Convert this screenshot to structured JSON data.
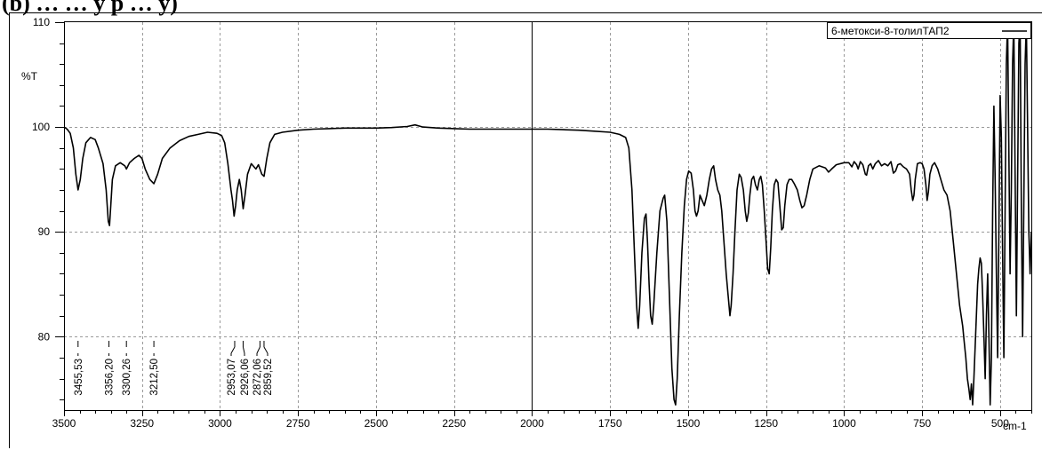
{
  "header_text": "(b) … … y p … y)",
  "chart_data": {
    "type": "line",
    "xlabel": "cm-1",
    "ylabel": "%T",
    "xlim": [
      3500,
      400
    ],
    "ylim": [
      73,
      110
    ],
    "x_ticks": [
      3500,
      3250,
      3000,
      2750,
      2500,
      2250,
      2000,
      1750,
      1500,
      1250,
      1000,
      750,
      500
    ],
    "x_tick_labels": [
      "3500",
      "3250",
      "3000",
      "2750",
      "2500",
      "2250",
      "2000",
      "1750",
      "1500",
      "1250",
      "1000",
      "750",
      "500"
    ],
    "y_ticks": [
      110,
      100,
      90,
      80
    ],
    "y_tick_labels": [
      "110",
      "100",
      "90",
      "80"
    ],
    "grid": true,
    "legend_position": "top-right",
    "series": [
      {
        "name": "6-метокси-8-толилТАП2",
        "color": "#000000",
        "points": [
          [
            3500,
            100.0
          ],
          [
            3490,
            99.8
          ],
          [
            3480,
            99.4
          ],
          [
            3470,
            98.0
          ],
          [
            3462,
            95.5
          ],
          [
            3455,
            94.0
          ],
          [
            3448,
            95.0
          ],
          [
            3440,
            97.0
          ],
          [
            3430,
            98.5
          ],
          [
            3415,
            99.0
          ],
          [
            3400,
            98.8
          ],
          [
            3390,
            98.0
          ],
          [
            3375,
            96.5
          ],
          [
            3365,
            94.0
          ],
          [
            3358,
            91.0
          ],
          [
            3354,
            90.6
          ],
          [
            3350,
            92.5
          ],
          [
            3345,
            95.0
          ],
          [
            3335,
            96.3
          ],
          [
            3320,
            96.6
          ],
          [
            3305,
            96.3
          ],
          [
            3300,
            96.0
          ],
          [
            3290,
            96.6
          ],
          [
            3275,
            97.0
          ],
          [
            3260,
            97.3
          ],
          [
            3250,
            97.0
          ],
          [
            3240,
            96.0
          ],
          [
            3225,
            95.0
          ],
          [
            3212,
            94.6
          ],
          [
            3200,
            95.5
          ],
          [
            3185,
            97.0
          ],
          [
            3160,
            98.0
          ],
          [
            3130,
            98.7
          ],
          [
            3100,
            99.1
          ],
          [
            3070,
            99.3
          ],
          [
            3040,
            99.5
          ],
          [
            3010,
            99.4
          ],
          [
            2995,
            99.2
          ],
          [
            2985,
            98.5
          ],
          [
            2975,
            96.5
          ],
          [
            2965,
            94.0
          ],
          [
            2960,
            93.0
          ],
          [
            2955,
            91.5
          ],
          [
            2950,
            92.5
          ],
          [
            2945,
            94.0
          ],
          [
            2938,
            95.0
          ],
          [
            2932,
            94.0
          ],
          [
            2926,
            92.2
          ],
          [
            2920,
            93.5
          ],
          [
            2912,
            95.5
          ],
          [
            2900,
            96.5
          ],
          [
            2885,
            96.0
          ],
          [
            2877,
            96.4
          ],
          [
            2872,
            96.0
          ],
          [
            2866,
            95.5
          ],
          [
            2859,
            95.3
          ],
          [
            2850,
            97.0
          ],
          [
            2840,
            98.5
          ],
          [
            2825,
            99.3
          ],
          [
            2800,
            99.5
          ],
          [
            2750,
            99.7
          ],
          [
            2700,
            99.8
          ],
          [
            2650,
            99.85
          ],
          [
            2600,
            99.9
          ],
          [
            2550,
            99.9
          ],
          [
            2500,
            99.9
          ],
          [
            2450,
            99.95
          ],
          [
            2400,
            100.05
          ],
          [
            2375,
            100.2
          ],
          [
            2350,
            100.0
          ],
          [
            2300,
            99.9
          ],
          [
            2250,
            99.85
          ],
          [
            2200,
            99.8
          ],
          [
            2150,
            99.8
          ],
          [
            2100,
            99.8
          ],
          [
            2050,
            99.8
          ],
          [
            2000,
            99.8
          ],
          [
            1950,
            99.8
          ],
          [
            1900,
            99.75
          ],
          [
            1850,
            99.7
          ],
          [
            1800,
            99.6
          ],
          [
            1750,
            99.5
          ],
          [
            1720,
            99.3
          ],
          [
            1700,
            99.0
          ],
          [
            1690,
            98.0
          ],
          [
            1680,
            94.0
          ],
          [
            1672,
            88.0
          ],
          [
            1665,
            83.0
          ],
          [
            1660,
            80.8
          ],
          [
            1655,
            83.0
          ],
          [
            1648,
            88.0
          ],
          [
            1640,
            91.3
          ],
          [
            1635,
            91.7
          ],
          [
            1630,
            89.0
          ],
          [
            1625,
            85.0
          ],
          [
            1620,
            82.0
          ],
          [
            1615,
            81.2
          ],
          [
            1610,
            83.0
          ],
          [
            1600,
            88.0
          ],
          [
            1590,
            92.0
          ],
          [
            1580,
            93.2
          ],
          [
            1575,
            93.5
          ],
          [
            1568,
            91.0
          ],
          [
            1560,
            84.0
          ],
          [
            1552,
            77.0
          ],
          [
            1545,
            74.0
          ],
          [
            1540,
            73.5
          ],
          [
            1535,
            76.0
          ],
          [
            1528,
            82.0
          ],
          [
            1520,
            88.0
          ],
          [
            1512,
            92.5
          ],
          [
            1505,
            95.0
          ],
          [
            1498,
            95.8
          ],
          [
            1490,
            95.6
          ],
          [
            1483,
            94.0
          ],
          [
            1478,
            92.0
          ],
          [
            1473,
            91.5
          ],
          [
            1468,
            92.0
          ],
          [
            1462,
            93.5
          ],
          [
            1455,
            93.0
          ],
          [
            1448,
            92.5
          ],
          [
            1440,
            93.5
          ],
          [
            1432,
            95.0
          ],
          [
            1425,
            96.0
          ],
          [
            1418,
            96.3
          ],
          [
            1412,
            95.0
          ],
          [
            1405,
            94.0
          ],
          [
            1398,
            93.5
          ],
          [
            1392,
            92.0
          ],
          [
            1385,
            89.0
          ],
          [
            1378,
            86.0
          ],
          [
            1372,
            84.0
          ],
          [
            1366,
            82.0
          ],
          [
            1362,
            83.0
          ],
          [
            1356,
            86.0
          ],
          [
            1350,
            90.0
          ],
          [
            1343,
            94.0
          ],
          [
            1336,
            95.5
          ],
          [
            1330,
            95.2
          ],
          [
            1323,
            94.0
          ],
          [
            1317,
            92.0
          ],
          [
            1312,
            91.0
          ],
          [
            1307,
            91.8
          ],
          [
            1302,
            93.5
          ],
          [
            1296,
            95.0
          ],
          [
            1290,
            95.3
          ],
          [
            1284,
            94.5
          ],
          [
            1278,
            94.0
          ],
          [
            1272,
            95.0
          ],
          [
            1267,
            95.3
          ],
          [
            1262,
            94.5
          ],
          [
            1256,
            92.0
          ],
          [
            1250,
            89.0
          ],
          [
            1245,
            86.5
          ],
          [
            1240,
            86.0
          ],
          [
            1235,
            88.5
          ],
          [
            1230,
            92.0
          ],
          [
            1224,
            94.5
          ],
          [
            1218,
            95.0
          ],
          [
            1212,
            94.7
          ],
          [
            1206,
            92.5
          ],
          [
            1200,
            90.2
          ],
          [
            1195,
            90.4
          ],
          [
            1190,
            92.5
          ],
          [
            1183,
            94.5
          ],
          [
            1176,
            95.0
          ],
          [
            1168,
            95.0
          ],
          [
            1160,
            94.6
          ],
          [
            1150,
            94.0
          ],
          [
            1142,
            93.0
          ],
          [
            1135,
            92.3
          ],
          [
            1128,
            92.5
          ],
          [
            1120,
            93.5
          ],
          [
            1110,
            95.0
          ],
          [
            1100,
            96.0
          ],
          [
            1080,
            96.3
          ],
          [
            1060,
            96.1
          ],
          [
            1050,
            95.7
          ],
          [
            1040,
            96.0
          ],
          [
            1025,
            96.4
          ],
          [
            1000,
            96.6
          ],
          [
            985,
            96.6
          ],
          [
            975,
            96.2
          ],
          [
            968,
            96.7
          ],
          [
            960,
            96.4
          ],
          [
            955,
            96.0
          ],
          [
            948,
            96.7
          ],
          [
            940,
            96.4
          ],
          [
            932,
            95.5
          ],
          [
            928,
            95.4
          ],
          [
            922,
            96.3
          ],
          [
            915,
            96.5
          ],
          [
            908,
            96.0
          ],
          [
            900,
            96.5
          ],
          [
            890,
            96.8
          ],
          [
            880,
            96.3
          ],
          [
            870,
            96.5
          ],
          [
            860,
            96.3
          ],
          [
            850,
            96.7
          ],
          [
            842,
            95.6
          ],
          [
            835,
            95.8
          ],
          [
            828,
            96.4
          ],
          [
            820,
            96.5
          ],
          [
            810,
            96.2
          ],
          [
            800,
            96.0
          ],
          [
            790,
            95.5
          ],
          [
            785,
            94.0
          ],
          [
            780,
            93.0
          ],
          [
            776,
            93.5
          ],
          [
            772,
            95.0
          ],
          [
            765,
            96.5
          ],
          [
            756,
            96.6
          ],
          [
            750,
            96.5
          ],
          [
            744,
            96.0
          ],
          [
            738,
            94.5
          ],
          [
            734,
            93.0
          ],
          [
            730,
            93.8
          ],
          [
            725,
            95.5
          ],
          [
            718,
            96.3
          ],
          [
            710,
            96.6
          ],
          [
            700,
            96.0
          ],
          [
            690,
            95.0
          ],
          [
            680,
            94.0
          ],
          [
            670,
            93.5
          ],
          [
            660,
            92.0
          ],
          [
            650,
            89.0
          ],
          [
            640,
            86.0
          ],
          [
            630,
            83.0
          ],
          [
            620,
            81.0
          ],
          [
            615,
            79.5
          ],
          [
            610,
            78.0
          ],
          [
            605,
            76.0
          ],
          [
            600,
            75.0
          ],
          [
            596,
            74.0
          ],
          [
            592,
            75.5
          ],
          [
            588,
            73.5
          ],
          [
            584,
            76.0
          ],
          [
            580,
            79.0
          ],
          [
            576,
            82.0
          ],
          [
            572,
            85.0
          ],
          [
            568,
            86.5
          ],
          [
            564,
            87.5
          ],
          [
            560,
            87.0
          ],
          [
            556,
            84.0
          ],
          [
            552,
            80.0
          ],
          [
            548,
            76.0
          ],
          [
            544,
            82.0
          ],
          [
            540,
            86.0
          ],
          [
            536,
            80.0
          ],
          [
            532,
            73.5
          ],
          [
            528,
            78.0
          ],
          [
            524,
            92.0
          ],
          [
            520,
            102.0
          ],
          [
            516,
            95.0
          ],
          [
            512,
            86.0
          ],
          [
            508,
            78.0
          ],
          [
            504,
            90.0
          ],
          [
            500,
            103.0
          ],
          [
            496,
            99.0
          ],
          [
            492,
            88.0
          ],
          [
            488,
            78.0
          ],
          [
            484,
            92.0
          ],
          [
            480,
            106.0
          ],
          [
            476,
            110.0
          ],
          [
            472,
            98.0
          ],
          [
            468,
            86.0
          ],
          [
            464,
            94.0
          ],
          [
            460,
            106.0
          ],
          [
            456,
            110.0
          ],
          [
            452,
            96.0
          ],
          [
            448,
            82.0
          ],
          [
            444,
            95.0
          ],
          [
            440,
            108.0
          ],
          [
            436,
            110.0
          ],
          [
            432,
            92.0
          ],
          [
            428,
            80.0
          ],
          [
            424,
            93.0
          ],
          [
            420,
            106.0
          ],
          [
            416,
            110.0
          ],
          [
            412,
            100.0
          ],
          [
            408,
            90.0
          ],
          [
            404,
            86.0
          ],
          [
            400,
            90.0
          ]
        ]
      }
    ],
    "peak_labels": [
      {
        "label": "3455,53",
        "x": 3455
      },
      {
        "label": "3356,20",
        "x": 3356
      },
      {
        "label": "3300,26",
        "x": 3300
      },
      {
        "label": "3212,50",
        "x": 3212
      },
      {
        "label": "2953,07",
        "x": 2953
      },
      {
        "label": "2926,06",
        "x": 2926
      },
      {
        "label": "2872,06",
        "x": 2872
      },
      {
        "label": "2859,52",
        "x": 2859
      }
    ],
    "cursor_x": 2000
  }
}
